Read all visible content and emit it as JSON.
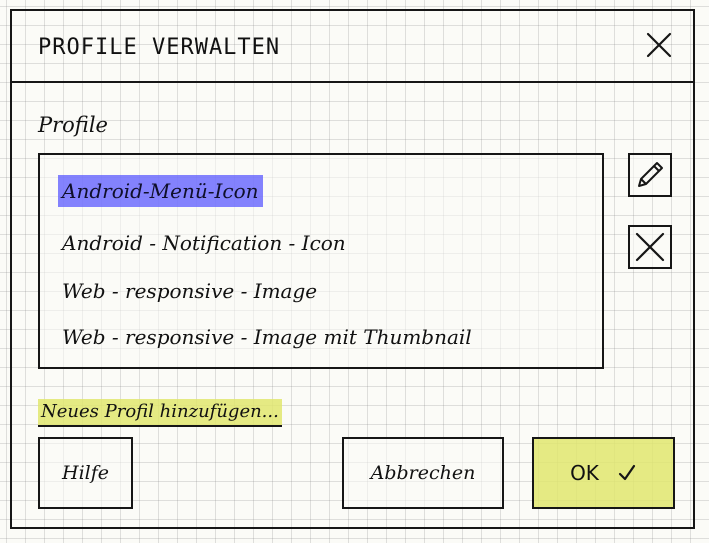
{
  "dialog": {
    "title": "Profile verwalten",
    "close_icon": "close-icon"
  },
  "profiles": {
    "label": "Profile",
    "items": [
      {
        "label": "Android-Menü-Icon",
        "selected": true
      },
      {
        "label": "Android - Notification - Icon",
        "selected": false
      },
      {
        "label": "Web - responsive - Image",
        "selected": false
      },
      {
        "label": "Web - responsive - Image mit Thumbnail",
        "selected": false
      }
    ],
    "edit_icon": "pencil-icon",
    "delete_icon": "close-icon"
  },
  "add_profile_link": "Neues Profil hinzufügen...",
  "buttons": {
    "help": "Hilfe",
    "cancel": "Abbrechen",
    "ok": "OK",
    "ok_icon": "check-icon"
  },
  "colors": {
    "selection": "#5b5aff",
    "highlight": "#e1e66e",
    "ink": "#161616",
    "paper": "#fbfbf7"
  }
}
